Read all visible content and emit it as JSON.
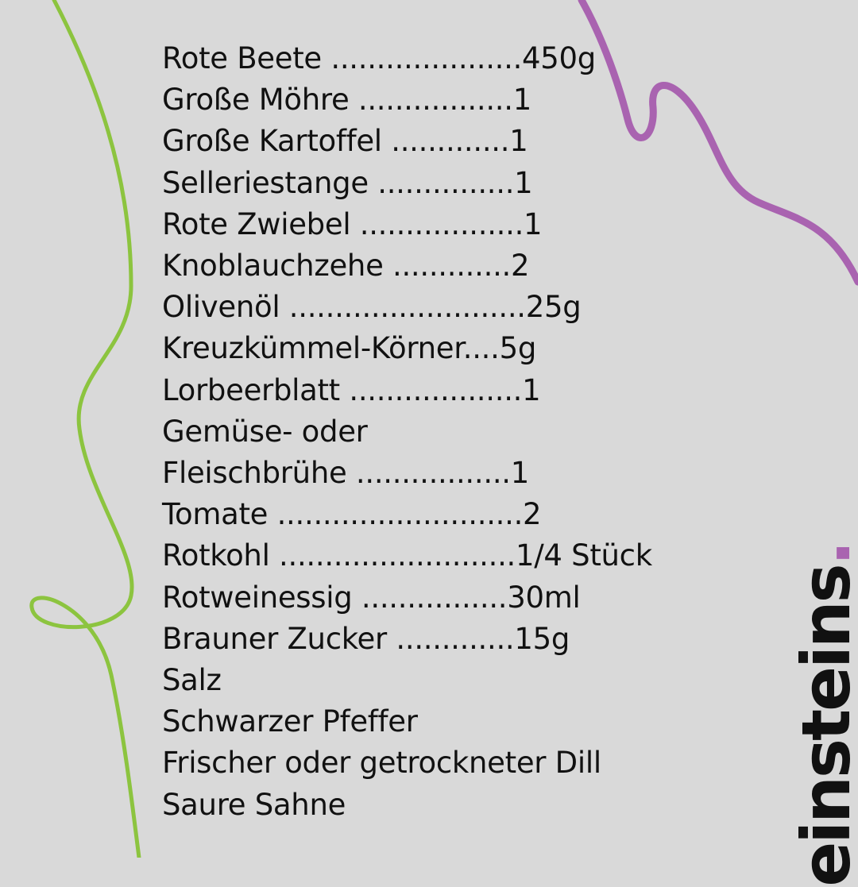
{
  "ingredients": [
    "Rote Beete .....................450g",
    "Große Möhre .................1",
    "Große Kartoffel .............1",
    "Selleriestange ...............1",
    "Rote Zwiebel ..................1",
    "Knoblauchzehe .............2",
    "Olivenöl ..........................25g",
    "Kreuzkümmel-Körner....5g",
    "Lorbeerblatt ...................1",
    "Gemüse- oder",
    "Fleischbrühe .................1",
    "Tomate ...........................2",
    "Rotkohl ..........................1/4 Stück",
    "Rotweinessig ................30ml",
    "Brauner Zucker .............15g",
    "Salz",
    "Schwarzer Pfeffer",
    "Frischer oder getrockneter Dill",
    "Saure Sahne"
  ],
  "logo": {
    "text": "einsteins",
    "dot": ".",
    "text_color": "#111111",
    "dot_color": "#a963b0"
  },
  "colors": {
    "background": "#d9d9d9",
    "green_curve": "#8cc43f",
    "purple_curve": "#a963b0"
  }
}
